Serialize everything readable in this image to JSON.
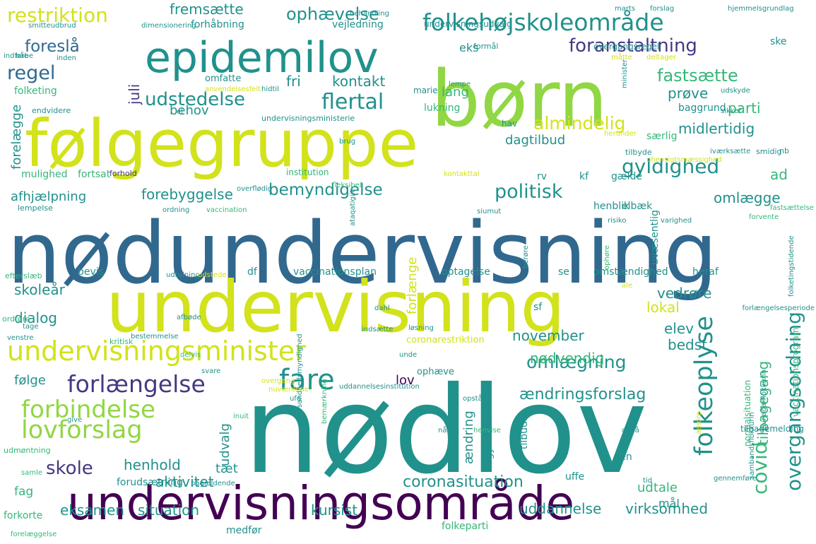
{
  "palette": {
    "dark_purple": "#440154",
    "indigo": "#443983",
    "blue": "#31688e",
    "teal": "#21918c",
    "green": "#35b779",
    "lime": "#90d743",
    "yellow": "#d2e21b",
    "light_yellow": "#e8e419"
  },
  "words": [
    {
      "text": "nødundervisning"
    },
    {
      "text": "nødlov"
    },
    {
      "text": "undervisning"
    },
    {
      "text": "følgegruppe"
    },
    {
      "text": "børn"
    },
    {
      "text": "undervisningsområde"
    },
    {
      "text": "epidemilov"
    },
    {
      "text": "undervisningsminister"
    },
    {
      "text": "folkehøjskoleområde"
    },
    {
      "text": "folkeoplyse"
    },
    {
      "text": "fare"
    },
    {
      "text": "lovforslag"
    },
    {
      "text": "forlængelse"
    },
    {
      "text": "forbindelse"
    },
    {
      "text": "restriktion"
    },
    {
      "text": "foranstaltning"
    },
    {
      "text": "flertal"
    },
    {
      "text": "udstedelse"
    },
    {
      "text": "gyldighed"
    },
    {
      "text": "regel"
    },
    {
      "text": "fastsætte"
    },
    {
      "text": "politisk"
    },
    {
      "text": "bemyndigelse"
    },
    {
      "text": "almindelig"
    },
    {
      "text": "ophævelse"
    },
    {
      "text": "foreslå"
    },
    {
      "text": "overgangsordning"
    },
    {
      "text": "covid"
    },
    {
      "text": "skole"
    },
    {
      "text": "omlægning"
    },
    {
      "text": "ændringsforslag"
    },
    {
      "text": "coronasituation"
    },
    {
      "text": "aktivitet"
    },
    {
      "text": "uddannelse"
    },
    {
      "text": "virksomhed"
    },
    {
      "text": "eksamen"
    },
    {
      "text": "situation"
    },
    {
      "text": "kursist"
    },
    {
      "text": "henhold"
    },
    {
      "text": "fri"
    },
    {
      "text": "kontakt"
    },
    {
      "text": "fremsætte"
    },
    {
      "text": "juli"
    },
    {
      "text": "lang"
    },
    {
      "text": "prøve"
    },
    {
      "text": "parti"
    },
    {
      "text": "midlertidig"
    },
    {
      "text": "forelægge"
    },
    {
      "text": "behov"
    },
    {
      "text": "dagtilbud"
    },
    {
      "text": "afhjælpning"
    },
    {
      "text": "forebyggelse"
    },
    {
      "text": "omlægge"
    },
    {
      "text": "skoleår"
    },
    {
      "text": "dialog"
    },
    {
      "text": "vedrøre"
    },
    {
      "text": "lokal"
    },
    {
      "text": "elev"
    },
    {
      "text": "bedst"
    },
    {
      "text": "november"
    },
    {
      "text": "nødvendig"
    },
    {
      "text": "lov"
    },
    {
      "text": "følge"
    },
    {
      "text": "udvalg"
    },
    {
      "text": "tæt"
    },
    {
      "text": "ændring"
    },
    {
      "text": "tilbagegang"
    },
    {
      "text": "udtale"
    },
    {
      "text": "mål"
    },
    {
      "text": "fag"
    },
    {
      "text": "ad"
    },
    {
      "text": "eks"
    },
    {
      "text": "forlænge"
    },
    {
      "text": "vaccinationsplan"
    },
    {
      "text": "optagelse"
    },
    {
      "text": "omstændighed"
    },
    {
      "text": "heraf"
    },
    {
      "text": "bevis"
    },
    {
      "text": "df"
    },
    {
      "text": "se"
    },
    {
      "text": "mulighed"
    },
    {
      "text": "fortsat"
    },
    {
      "text": "folketing"
    },
    {
      "text": "lukning"
    },
    {
      "text": "baggrund"
    },
    {
      "text": "særlig"
    },
    {
      "text": "gælde"
    },
    {
      "text": "kf"
    },
    {
      "text": "rv"
    },
    {
      "text": "henblik"
    },
    {
      "text": "elbæk"
    },
    {
      "text": "uvæsentlig"
    },
    {
      "text": "tilbud"
    },
    {
      "text": "sen"
    },
    {
      "text": "medfør"
    },
    {
      "text": "folkeparti"
    },
    {
      "text": "forkorte"
    },
    {
      "text": "forudsætning"
    },
    {
      "text": "begyndelse"
    },
    {
      "text": "uffe"
    },
    {
      "text": "ophæve"
    },
    {
      "text": "coronarestriktion"
    },
    {
      "text": "sf"
    },
    {
      "text": "forhåbning"
    },
    {
      "text": "vejledning"
    },
    {
      "text": "undervisningsudvalg"
    },
    {
      "text": "dimensionering"
    },
    {
      "text": "formål"
    },
    {
      "text": "overgangsregel"
    },
    {
      "text": "ske"
    },
    {
      "text": "omfatte"
    },
    {
      "text": "endvidere"
    },
    {
      "text": "undervisningsministerie"
    },
    {
      "text": "hav"
    },
    {
      "text": "forhold"
    },
    {
      "text": "institution"
    },
    {
      "text": "lempelse"
    },
    {
      "text": "efterslæb"
    },
    {
      "text": "ordføre"
    },
    {
      "text": "kritisk"
    },
    {
      "text": "udmøntning"
    },
    {
      "text": "normalsituation"
    },
    {
      "text": "tilbagemelding"
    },
    {
      "text": "vaccinationsprogram"
    },
    {
      "text": "javnaðarflokkurin"
    },
    {
      "text": "sambandsflokkurin"
    },
    {
      "text": "tilbyde"
    },
    {
      "text": "smidig"
    },
    {
      "text": "nb"
    },
    {
      "text": "marts"
    },
    {
      "text": "forslag"
    },
    {
      "text": "hjemmelsgrundlag"
    },
    {
      "text": "behandling"
    },
    {
      "text": "smitteudbrud"
    },
    {
      "text": "måtte"
    },
    {
      "text": "deltager"
    },
    {
      "text": "sikker"
    },
    {
      "text": "udskyde"
    },
    {
      "text": "minister"
    },
    {
      "text": "herunder"
    },
    {
      "text": "uhensigtsmæssighed"
    },
    {
      "text": "iværksætte"
    },
    {
      "text": "kontakttal"
    },
    {
      "text": "fleksibel"
    },
    {
      "text": "overflødig"
    },
    {
      "text": "ordning"
    },
    {
      "text": "vaccination"
    },
    {
      "text": "ataqatigiit"
    },
    {
      "text": "risiko"
    },
    {
      "text": "varighed"
    },
    {
      "text": "forvente"
    },
    {
      "text": "fastsættelse"
    },
    {
      "text": "siumut"
    },
    {
      "text": "ophøre"
    },
    {
      "text": "folketingstidende"
    },
    {
      "text": "forlængelsesperiode"
    },
    {
      "text": "udrulning"
    },
    {
      "text": "udstede"
    },
    {
      "text": "dahl"
    },
    {
      "text": "løsning"
    },
    {
      "text": "indsætte"
    },
    {
      "text": "tage"
    },
    {
      "text": "afbøde"
    },
    {
      "text": "bestemmelse"
    },
    {
      "text": "venstre"
    },
    {
      "text": "delvis"
    },
    {
      "text": "svare"
    },
    {
      "text": "unde"
    },
    {
      "text": "uddannelsesinstitution"
    },
    {
      "text": "overgang"
    },
    {
      "text": "ufg"
    },
    {
      "text": "opstå"
    },
    {
      "text": "nå"
    },
    {
      "text": "henvise"
    },
    {
      "text": "opnå"
    },
    {
      "text": "ændre"
    },
    {
      "text": "tid"
    },
    {
      "text": "gennemføre"
    },
    {
      "text": "forelæggelse"
    },
    {
      "text": "samle"
    },
    {
      "text": "inuit"
    },
    {
      "text": "give"
    },
    {
      "text": "pågældende"
    },
    {
      "text": "bemærkning"
    },
    {
      "text": "sundhedsmyndighed"
    },
    {
      "text": "nuværende"
    },
    {
      "text": "brug"
    },
    {
      "text": "anvendelsesfelt"
    },
    {
      "text": "hidtil"
    },
    {
      "text": "lempe"
    },
    {
      "text": "marie"
    },
    {
      "text": "el"
    },
    {
      "text": "indføre"
    },
    {
      "text": "håbe"
    },
    {
      "text": "inden"
    },
    {
      "text": "berøre"
    },
    {
      "text": "ale"
    },
    {
      "text": "al"
    }
  ]
}
